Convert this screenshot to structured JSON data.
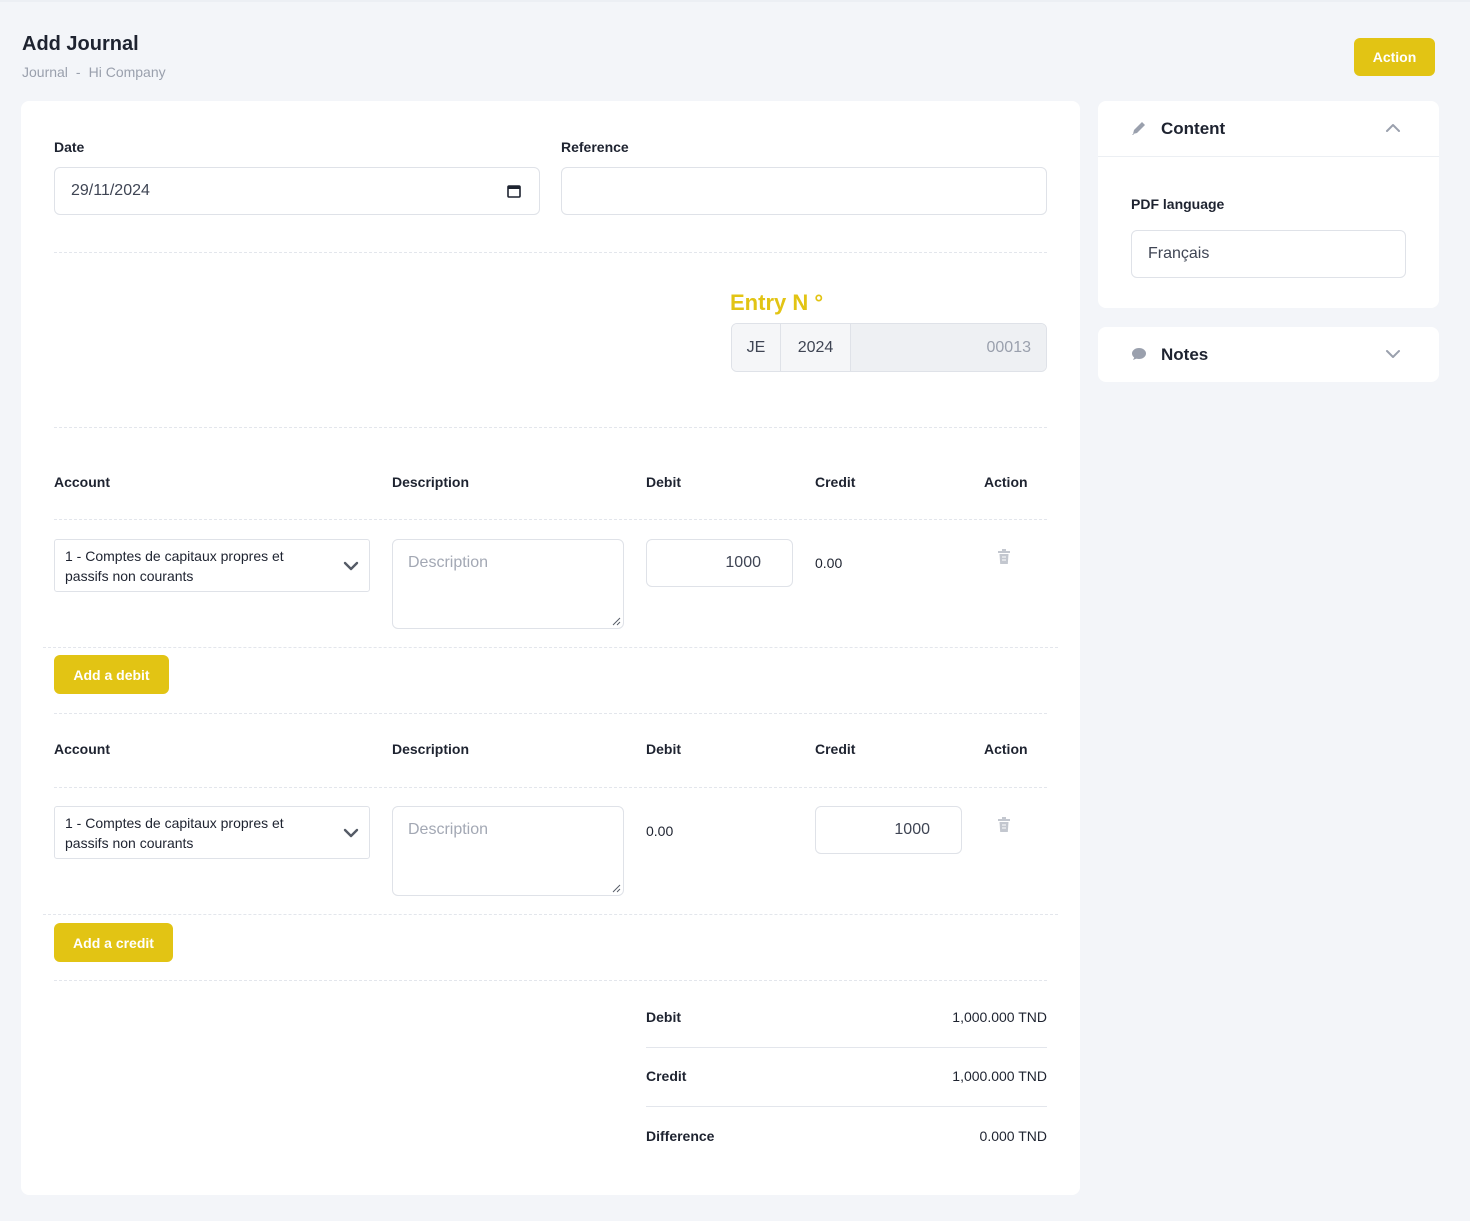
{
  "header": {
    "title": "Add Journal",
    "breadcrumb": [
      "Journal",
      "-",
      "Hi Company"
    ],
    "action_label": "Action"
  },
  "form": {
    "date_label": "Date",
    "date_value": "29/11/2024",
    "reference_label": "Reference",
    "reference_value": "",
    "entry_label": "Entry N °",
    "entry_prefix": "JE",
    "entry_year": "2024",
    "entry_number": "00013"
  },
  "columns": {
    "account": "Account",
    "description": "Description",
    "debit": "Debit",
    "credit": "Credit",
    "action": "Action"
  },
  "debit_line": {
    "account_line1": "1 - Comptes de capitaux propres et",
    "account_line2": "passifs non courants",
    "description_placeholder": "Description",
    "debit": "1000",
    "credit": "0.00"
  },
  "credit_line": {
    "account_line1": "1 - Comptes de capitaux propres et",
    "account_line2": "passifs non courants",
    "description_placeholder": "Description",
    "debit": "0.00",
    "credit": "1000"
  },
  "buttons": {
    "add_debit": "Add a debit",
    "add_credit": "Add a credit"
  },
  "summary": {
    "debit_label": "Debit",
    "debit_value": "1,000.000 TND",
    "credit_label": "Credit",
    "credit_value": "1,000.000 TND",
    "difference_label": "Difference",
    "difference_value": "0.000 TND"
  },
  "sidebar": {
    "content_title": "Content",
    "pdf_language_label": "PDF language",
    "pdf_language_value": "Français",
    "notes_title": "Notes"
  },
  "colors": {
    "accent": "#e2c414",
    "background": "#f3f5f9",
    "card": "#ffffff"
  },
  "icons": [
    "calendar-icon",
    "chevron-down-icon",
    "trash-icon",
    "pencil-icon",
    "chat-bubble-icon",
    "chevron-up-icon"
  ]
}
